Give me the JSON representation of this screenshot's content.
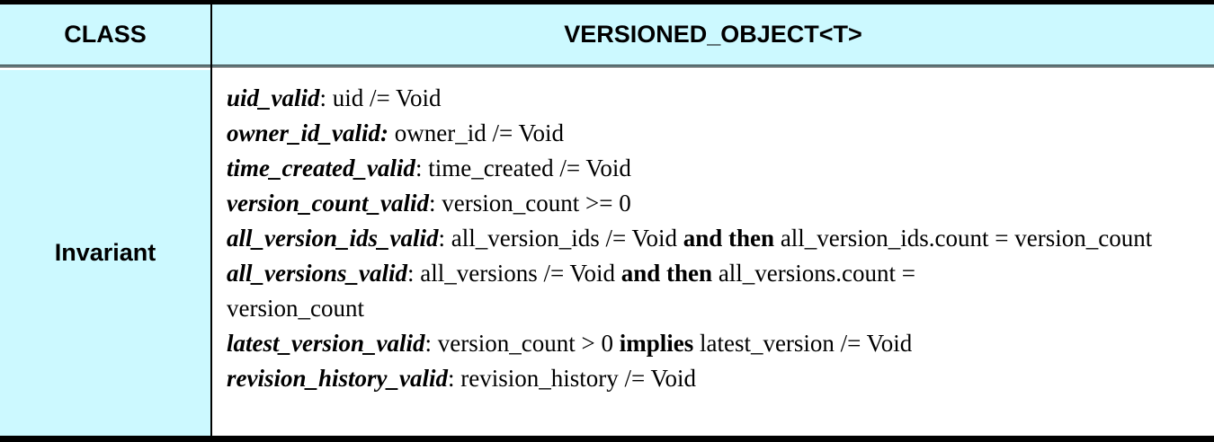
{
  "header": {
    "class_label": "CLASS",
    "class_name": "VERSIONED_OBJECT<T>"
  },
  "section": {
    "label": "Invariant"
  },
  "invariants": [
    {
      "name": "uid_valid",
      "sep": ": ",
      "expr": "uid /= Void"
    },
    {
      "name": "owner_id_valid:",
      "sep": " ",
      "expr": "owner_id /= Void"
    },
    {
      "name": "time_created_valid",
      "sep": ": ",
      "expr": "time_created /= Void"
    },
    {
      "name": "version_count_valid",
      "sep": ": ",
      "expr": "version_count >= 0"
    },
    {
      "name": "all_version_ids_valid",
      "sep": ": ",
      "expr_a": "all_version_ids /= Void ",
      "kw": "and then",
      "expr_b": " all_version_ids.count = version_count"
    },
    {
      "name": "all_versions_valid",
      "sep": ": ",
      "expr_a": "all_versions /= Void ",
      "kw": "and then",
      "expr_b": " all_versions.count = ",
      "expr_c": "version_count"
    },
    {
      "name": "latest_version_valid",
      "sep": ": ",
      "expr_a": "version_count > 0 ",
      "kw": "implies",
      "expr_b": " latest_version /= Void"
    },
    {
      "name": "revision_history_valid",
      "sep": ": ",
      "expr": "revision_history /= Void"
    }
  ]
}
